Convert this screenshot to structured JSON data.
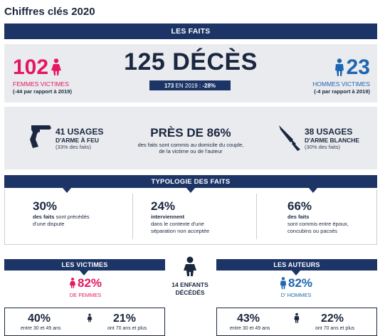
{
  "page": {
    "title": "Chiffres clés 2020"
  },
  "les_faits": {
    "header": "LES FAITS"
  },
  "femmes": {
    "count": "102",
    "label": "FEMMES VICTIMES",
    "note": "(-44 par rapport à 2019)"
  },
  "deces": {
    "headline": "125 DÉCÈS",
    "sub_strong": "173",
    "sub_text": " EN 2019 : ",
    "sub_change": "-28%"
  },
  "hommes": {
    "count": "23",
    "label": "HOMMES VICTIMES",
    "note": "(-4 par rapport à 2019)"
  },
  "arme_feu": {
    "count_line": "41 USAGES",
    "line2": "D'ARME À FEU",
    "note": "(33% des faits)"
  },
  "domicile": {
    "headline": "PRÈS DE 86%",
    "line1": "des faits sont commis au domicile du couple,",
    "line2": "de la victime ou de l'auteur"
  },
  "arme_blanche": {
    "count_line": "38 USAGES",
    "line2": "D'ARME BLANCHE",
    "note": "(30% des faits)"
  },
  "typologie": {
    "header": "TYPOLOGIE DES FAITS",
    "items": [
      {
        "pct": "30%",
        "bold": "des faits",
        "rest1": " sont précédés",
        "rest2": "d'une dispute",
        "rest3": ""
      },
      {
        "pct": "24%",
        "bold": "interviennent",
        "rest1": "",
        "rest2": "dans le contexte d'une",
        "rest3": "séparation non acceptée"
      },
      {
        "pct": "66%",
        "bold": "des faits",
        "rest1": "",
        "rest2": "sont commis entre époux,",
        "rest3": "concubins ou pacsés"
      }
    ]
  },
  "victimes": {
    "header": "LES VICTIMES",
    "pct": "82%",
    "label": "DE FEMMES",
    "age_pct": "40%",
    "age_text": "entre 30 et 49 ans",
    "old_pct": "21%",
    "old_text": "ont 70 ans et plus"
  },
  "enfants": {
    "line1": "14 ENFANTS",
    "line2": "DÉCÉDÉS"
  },
  "auteurs": {
    "header": "LES AUTEURS",
    "pct": "82%",
    "label": "D' HOMMES",
    "age_pct": "43%",
    "age_text": "entre 30 et 49 ans",
    "old_pct": "22%",
    "old_text": "ont 70 ans et plus"
  },
  "colors": {
    "navy": "#1c3466",
    "pink": "#e5175f",
    "blue": "#1e66b0",
    "grey": "#e9ebee"
  }
}
